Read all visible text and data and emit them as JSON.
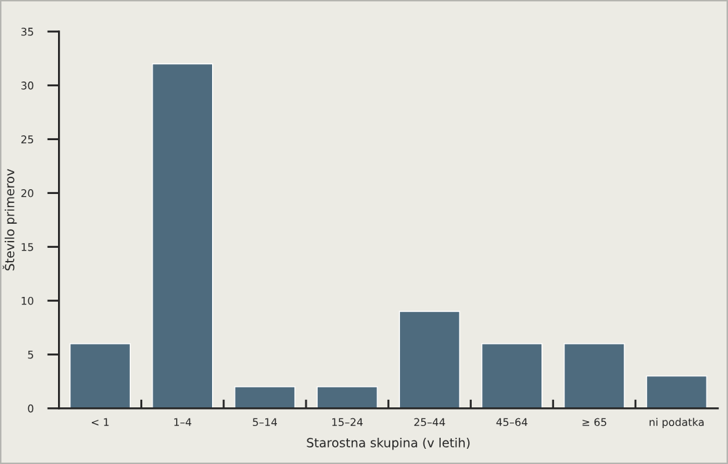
{
  "chart_data": {
    "type": "bar",
    "xlabel": "Starostna skupina (v letih)",
    "ylabel": "Število primerov",
    "categories": [
      "< 1",
      "1–4",
      "5–14",
      "15–24",
      "25–44",
      "45–64",
      "≥ 65",
      "ni podatka"
    ],
    "values": [
      6,
      32,
      2,
      2,
      9,
      6,
      6,
      3
    ],
    "color": "#4e6b7e",
    "ylim": [
      0,
      35
    ],
    "yticks": [
      0,
      5,
      10,
      15,
      20,
      25,
      30,
      35
    ],
    "grid": false,
    "legend": false
  }
}
